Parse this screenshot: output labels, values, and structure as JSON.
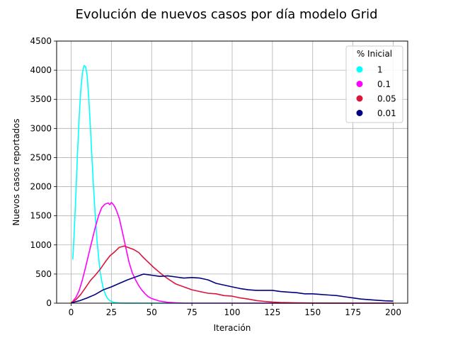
{
  "chart_data": {
    "type": "line",
    "title": "Evolución de nuevos casos por día modelo Grid",
    "xlabel": "Iteración",
    "ylabel": "Nuevos casos reportados",
    "xlim": [
      -9,
      209
    ],
    "ylim": [
      0,
      4500
    ],
    "xticks": [
      0,
      25,
      50,
      75,
      100,
      125,
      150,
      175,
      200
    ],
    "yticks": [
      0,
      500,
      1000,
      1500,
      2000,
      2500,
      3000,
      3500,
      4000,
      4500
    ],
    "grid": true,
    "legend": {
      "title": "% Inicial",
      "position": "top-right"
    },
    "series": [
      {
        "name": "1",
        "color": "#00ffff",
        "x": [
          1,
          2,
          3,
          4,
          5,
          6,
          7,
          8,
          9,
          10,
          11,
          12,
          13,
          14,
          15,
          16,
          17,
          18,
          19,
          20,
          21,
          22,
          23,
          24,
          25,
          26,
          27,
          28,
          29,
          30,
          35,
          40,
          50,
          60,
          75,
          100,
          125,
          150,
          175,
          200
        ],
        "y": [
          750,
          1250,
          1900,
          2600,
          3200,
          3650,
          3950,
          4080,
          4060,
          3900,
          3500,
          3000,
          2450,
          1950,
          1500,
          1100,
          800,
          550,
          380,
          250,
          170,
          110,
          70,
          45,
          30,
          20,
          12,
          8,
          5,
          3,
          1,
          0,
          0,
          0,
          0,
          0,
          0,
          0,
          0,
          0
        ]
      },
      {
        "name": "0.1",
        "color": "#ff00ff",
        "x": [
          1,
          3,
          5,
          7,
          9,
          11,
          13,
          15,
          17,
          19,
          21,
          23,
          24,
          25,
          26,
          27,
          28,
          30,
          32,
          34,
          36,
          38,
          40,
          42,
          44,
          46,
          48,
          50,
          55,
          60,
          65,
          70,
          80,
          100,
          125,
          150,
          175,
          200
        ],
        "y": [
          30,
          100,
          220,
          400,
          620,
          850,
          1080,
          1300,
          1500,
          1640,
          1700,
          1720,
          1690,
          1730,
          1700,
          1660,
          1600,
          1450,
          1200,
          950,
          700,
          520,
          400,
          300,
          220,
          160,
          110,
          80,
          35,
          15,
          5,
          0,
          0,
          0,
          0,
          0,
          0,
          0
        ]
      },
      {
        "name": "0.05",
        "color": "#dc143c",
        "x": [
          0,
          3,
          6,
          9,
          12,
          15,
          18,
          21,
          24,
          27,
          30,
          33,
          36,
          39,
          42,
          45,
          48,
          51,
          54,
          57,
          60,
          65,
          70,
          75,
          80,
          85,
          90,
          95,
          100,
          105,
          110,
          115,
          120,
          125,
          130,
          140,
          150,
          160,
          175,
          200
        ],
        "y": [
          10,
          60,
          150,
          270,
          390,
          480,
          580,
          700,
          810,
          880,
          960,
          980,
          950,
          920,
          870,
          780,
          700,
          620,
          550,
          480,
          420,
          330,
          280,
          230,
          200,
          170,
          160,
          130,
          120,
          90,
          70,
          45,
          30,
          20,
          12,
          5,
          2,
          1,
          0,
          0
        ]
      },
      {
        "name": "0.01",
        "color": "#000080",
        "x": [
          0,
          5,
          10,
          15,
          20,
          25,
          30,
          35,
          40,
          45,
          50,
          55,
          60,
          65,
          70,
          75,
          80,
          85,
          90,
          95,
          100,
          105,
          110,
          115,
          120,
          125,
          130,
          135,
          140,
          145,
          150,
          155,
          160,
          165,
          170,
          175,
          180,
          185,
          190,
          195,
          200
        ],
        "y": [
          5,
          40,
          90,
          150,
          230,
          280,
          340,
          400,
          450,
          500,
          480,
          460,
          470,
          450,
          430,
          440,
          430,
          400,
          340,
          310,
          280,
          250,
          230,
          220,
          220,
          220,
          200,
          190,
          180,
          160,
          160,
          150,
          140,
          130,
          110,
          90,
          70,
          60,
          50,
          40,
          35
        ]
      }
    ]
  }
}
